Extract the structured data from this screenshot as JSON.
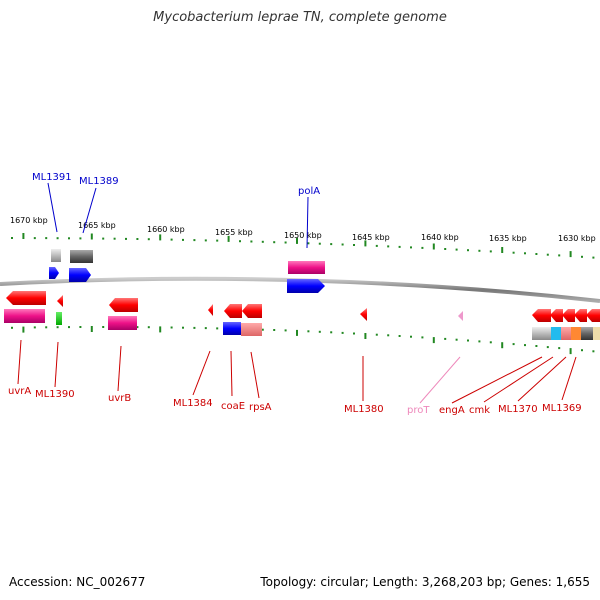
{
  "title": "Mycobacterium leprae TN, complete genome",
  "footer": {
    "accession": "Accession: NC_002677",
    "summary": "Topology: circular; Length: 3,268,203 bp; Genes: 1,655"
  },
  "colors": {
    "forward_label": "#0000cc",
    "reverse_label": "#cc0000",
    "rna_label": "#ee88bb",
    "tick": "#228822",
    "backbone": "#888888"
  },
  "ticks": [
    "1670 kbp",
    "1665 kbp",
    "1660 kbp",
    "1655 kbp",
    "1650 kbp",
    "1645 kbp",
    "1640 kbp",
    "1635 kbp",
    "1630 kbp"
  ],
  "forward_genes": [
    "ML1391",
    "ML1389",
    "polA"
  ],
  "reverse_genes": [
    "uvrA",
    "ML1390",
    "uvrB",
    "ML1384",
    "coaE",
    "rpsA",
    "ML1380",
    "proT",
    "engA",
    "cmk",
    "ML1370",
    "ML1369"
  ]
}
